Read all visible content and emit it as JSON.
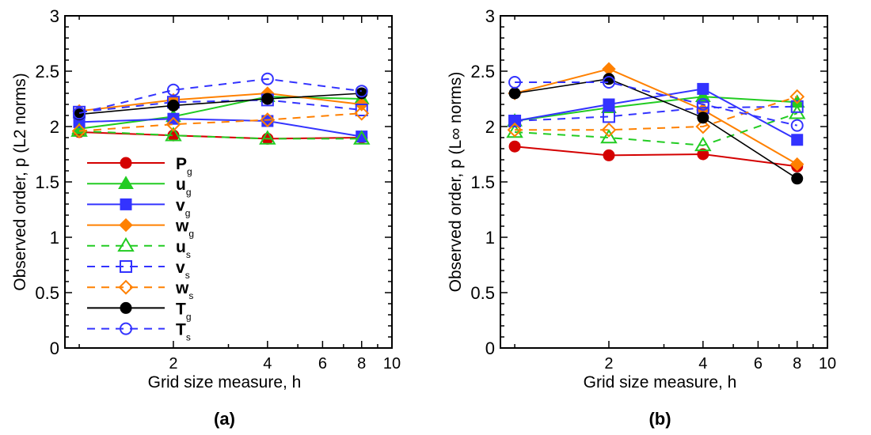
{
  "colors": {
    "red": "#d40000",
    "green": "#22cc22",
    "blue": "#3333ff",
    "orange": "#ff8000",
    "black": "#000000"
  },
  "chart_data": [
    {
      "type": "line",
      "panel_label": "(a)",
      "xlabel": "Grid size measure, h",
      "ylabel": "Observed order, p (L2 norms)",
      "xscale": "log",
      "xlim": [
        0.9,
        10
      ],
      "ylim": [
        0,
        3
      ],
      "xticks": [
        2,
        4,
        6,
        8,
        10
      ],
      "yticks": [
        0,
        0.5,
        1,
        1.5,
        2,
        2.5,
        3
      ],
      "ytick_labels": [
        "0",
        "0.5",
        "1",
        "1.5",
        "2",
        "2.5",
        "3"
      ],
      "legend": "inside-left",
      "x": [
        1,
        2,
        4,
        8
      ],
      "series": [
        {
          "name": "P",
          "sub": "g",
          "color": "red",
          "dash": false,
          "marker": "circle",
          "filled": true,
          "values": [
            1.95,
            1.92,
            1.89,
            1.9
          ]
        },
        {
          "name": "u",
          "sub": "g",
          "color": "green",
          "dash": false,
          "marker": "triangle",
          "filled": true,
          "values": [
            1.98,
            2.09,
            2.27,
            2.25
          ]
        },
        {
          "name": "v",
          "sub": "g",
          "color": "blue",
          "dash": false,
          "marker": "square",
          "filled": true,
          "values": [
            2.04,
            2.07,
            2.05,
            1.91
          ]
        },
        {
          "name": "w",
          "sub": "g",
          "color": "orange",
          "dash": false,
          "marker": "diamond",
          "filled": true,
          "values": [
            2.14,
            2.24,
            2.3,
            2.2
          ]
        },
        {
          "name": "u",
          "sub": "s",
          "color": "green",
          "dash": true,
          "marker": "triangle",
          "filled": false,
          "values": [
            1.96,
            1.92,
            1.89,
            1.89
          ]
        },
        {
          "name": "v",
          "sub": "s",
          "color": "blue",
          "dash": true,
          "marker": "square",
          "filled": false,
          "values": [
            2.13,
            2.22,
            2.24,
            2.15
          ]
        },
        {
          "name": "w",
          "sub": "s",
          "color": "orange",
          "dash": true,
          "marker": "diamond",
          "filled": false,
          "values": [
            1.96,
            2.02,
            2.06,
            2.12
          ]
        },
        {
          "name": "T",
          "sub": "g",
          "color": "black",
          "dash": false,
          "marker": "circle",
          "filled": true,
          "values": [
            2.11,
            2.19,
            2.25,
            2.3
          ]
        },
        {
          "name": "T",
          "sub": "s",
          "color": "blue",
          "dash": true,
          "marker": "circle",
          "filled": false,
          "values": [
            2.12,
            2.33,
            2.43,
            2.32
          ]
        }
      ]
    },
    {
      "type": "line",
      "panel_label": "(b)",
      "xlabel": "Grid size measure, h",
      "ylabel": "Observed order, p (L∞ norms)",
      "xscale": "log",
      "xlim": [
        0.9,
        10
      ],
      "ylim": [
        0,
        3
      ],
      "xticks": [
        2,
        4,
        6,
        8,
        10
      ],
      "yticks": [
        0,
        0.5,
        1,
        1.5,
        2,
        2.5,
        3
      ],
      "ytick_labels": [
        "0",
        "0.5",
        "1",
        "1.5",
        "2",
        "2.5",
        "3"
      ],
      "legend": "none",
      "x": [
        1,
        2,
        4,
        8
      ],
      "series": [
        {
          "name": "P",
          "sub": "g",
          "color": "red",
          "dash": false,
          "marker": "circle",
          "filled": true,
          "values": [
            1.82,
            1.74,
            1.75,
            1.64
          ]
        },
        {
          "name": "u",
          "sub": "g",
          "color": "green",
          "dash": false,
          "marker": "triangle",
          "filled": true,
          "values": [
            2.05,
            2.17,
            2.27,
            2.22
          ]
        },
        {
          "name": "v",
          "sub": "g",
          "color": "blue",
          "dash": false,
          "marker": "square",
          "filled": true,
          "values": [
            2.05,
            2.2,
            2.34,
            1.88
          ]
        },
        {
          "name": "w",
          "sub": "g",
          "color": "orange",
          "dash": false,
          "marker": "diamond",
          "filled": true,
          "values": [
            2.3,
            2.52,
            2.15,
            1.66
          ]
        },
        {
          "name": "u",
          "sub": "s",
          "color": "green",
          "dash": true,
          "marker": "triangle",
          "filled": false,
          "values": [
            1.95,
            1.9,
            1.83,
            2.12
          ]
        },
        {
          "name": "v",
          "sub": "s",
          "color": "blue",
          "dash": true,
          "marker": "square",
          "filled": false,
          "values": [
            2.05,
            2.09,
            2.17,
            2.18
          ]
        },
        {
          "name": "w",
          "sub": "s",
          "color": "orange",
          "dash": true,
          "marker": "diamond",
          "filled": false,
          "values": [
            1.97,
            1.97,
            2.0,
            2.27
          ]
        },
        {
          "name": "T",
          "sub": "g",
          "color": "black",
          "dash": false,
          "marker": "circle",
          "filled": true,
          "values": [
            2.3,
            2.43,
            2.08,
            1.53
          ]
        },
        {
          "name": "T",
          "sub": "s",
          "color": "blue",
          "dash": true,
          "marker": "circle",
          "filled": false,
          "values": [
            2.4,
            2.4,
            2.2,
            2.01
          ]
        }
      ]
    }
  ]
}
